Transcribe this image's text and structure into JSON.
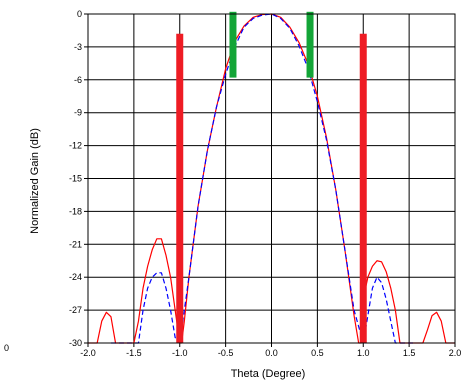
{
  "chart_data": {
    "type": "line",
    "xlabel": "Theta (Degree)",
    "ylabel": "Normalized Gain (dB)",
    "xlim": [
      -2.0,
      2.0
    ],
    "ylim": [
      -30,
      0
    ],
    "x_ticks": [
      "-2.0",
      "-1.5",
      "-1.0",
      "-0.5",
      "0.0",
      "0.5",
      "1.0",
      "1.5",
      "2.0"
    ],
    "y_ticks": [
      "0",
      "-3",
      "-6",
      "-9",
      "-12",
      "-15",
      "-18",
      "-21",
      "-24",
      "-27",
      "-30"
    ],
    "stray_label": "0",
    "grid": true,
    "series": [
      {
        "style": "solid",
        "color": "#ff0000",
        "x": [
          -2.0,
          -1.9,
          -1.85,
          -1.8,
          -1.75,
          -1.7,
          -1.65,
          -1.6,
          -1.55,
          -1.5,
          -1.45,
          -1.4,
          -1.35,
          -1.3,
          -1.25,
          -1.2,
          -1.15,
          -1.1,
          -1.05,
          -1.0,
          -0.98,
          -0.95,
          -0.9,
          -0.8,
          -0.7,
          -0.6,
          -0.5,
          -0.4,
          -0.3,
          -0.2,
          -0.1,
          0.0,
          0.1,
          0.2,
          0.3,
          0.4,
          0.5,
          0.6,
          0.7,
          0.8,
          0.9,
          0.95,
          0.98,
          1.0,
          1.05,
          1.1,
          1.15,
          1.2,
          1.25,
          1.3,
          1.35,
          1.4,
          1.45,
          1.5,
          1.55,
          1.6,
          1.65,
          1.7,
          1.75,
          1.8,
          1.85,
          1.9,
          2.0
        ],
        "y": [
          -30,
          -30,
          -28,
          -27.2,
          -27.6,
          -30,
          -30,
          -30,
          -30,
          -30,
          -28,
          -25,
          -23,
          -21.5,
          -20.5,
          -20.5,
          -22,
          -24,
          -27,
          -30,
          -30,
          -28,
          -24,
          -17.5,
          -12.5,
          -8.5,
          -5,
          -2.5,
          -1.1,
          -0.3,
          -0.05,
          0,
          -0.3,
          -1.2,
          -2.6,
          -4.6,
          -7.5,
          -11.3,
          -16,
          -21.5,
          -27.5,
          -30,
          -30,
          -26,
          -24,
          -23,
          -22.5,
          -22.6,
          -23.5,
          -25,
          -27,
          -30,
          -30,
          -30,
          -30,
          -30,
          -30,
          -28.8,
          -27.5,
          -27.2,
          -28,
          -30,
          -30
        ]
      },
      {
        "style": "dashed",
        "color": "#0000ff",
        "x": [
          -1.75,
          -1.65,
          -1.55,
          -1.45,
          -1.4,
          -1.35,
          -1.3,
          -1.25,
          -1.2,
          -1.15,
          -1.1,
          -1.05,
          -1.0,
          -0.9,
          -0.8,
          -0.7,
          -0.6,
          -0.5,
          -0.4,
          -0.3,
          -0.2,
          -0.1,
          0.0,
          0.1,
          0.2,
          0.3,
          0.4,
          0.5,
          0.6,
          0.7,
          0.8,
          0.9,
          1.0,
          1.05,
          1.1,
          1.15,
          1.2,
          1.25,
          1.3,
          1.35,
          1.4,
          1.45,
          1.5,
          1.55
        ],
        "y": [
          -30,
          -30,
          -30,
          -30,
          -27,
          -25,
          -24,
          -23.6,
          -23.6,
          -25,
          -27,
          -29.5,
          -30,
          -24,
          -17.5,
          -12.5,
          -8.5,
          -5.5,
          -3,
          -1.2,
          -0.4,
          -0.1,
          0,
          -0.4,
          -1.3,
          -2.9,
          -5,
          -8,
          -11.5,
          -16,
          -21.5,
          -27,
          -30,
          -27.5,
          -25,
          -24,
          -24.5,
          -26,
          -28,
          -30,
          -30,
          -30,
          -30,
          -30
        ]
      }
    ],
    "markers": [
      {
        "x": -1.0,
        "ymin": -30,
        "ymax": -1.8,
        "color": "#ee1c24"
      },
      {
        "x": 1.0,
        "ymin": -30,
        "ymax": -1.8,
        "color": "#ee1c24"
      },
      {
        "x": -0.42,
        "ymin": -5.8,
        "ymax": 0.2,
        "color": "#13a537"
      },
      {
        "x": 0.42,
        "ymin": -5.8,
        "ymax": 0.2,
        "color": "#13a537"
      }
    ]
  }
}
